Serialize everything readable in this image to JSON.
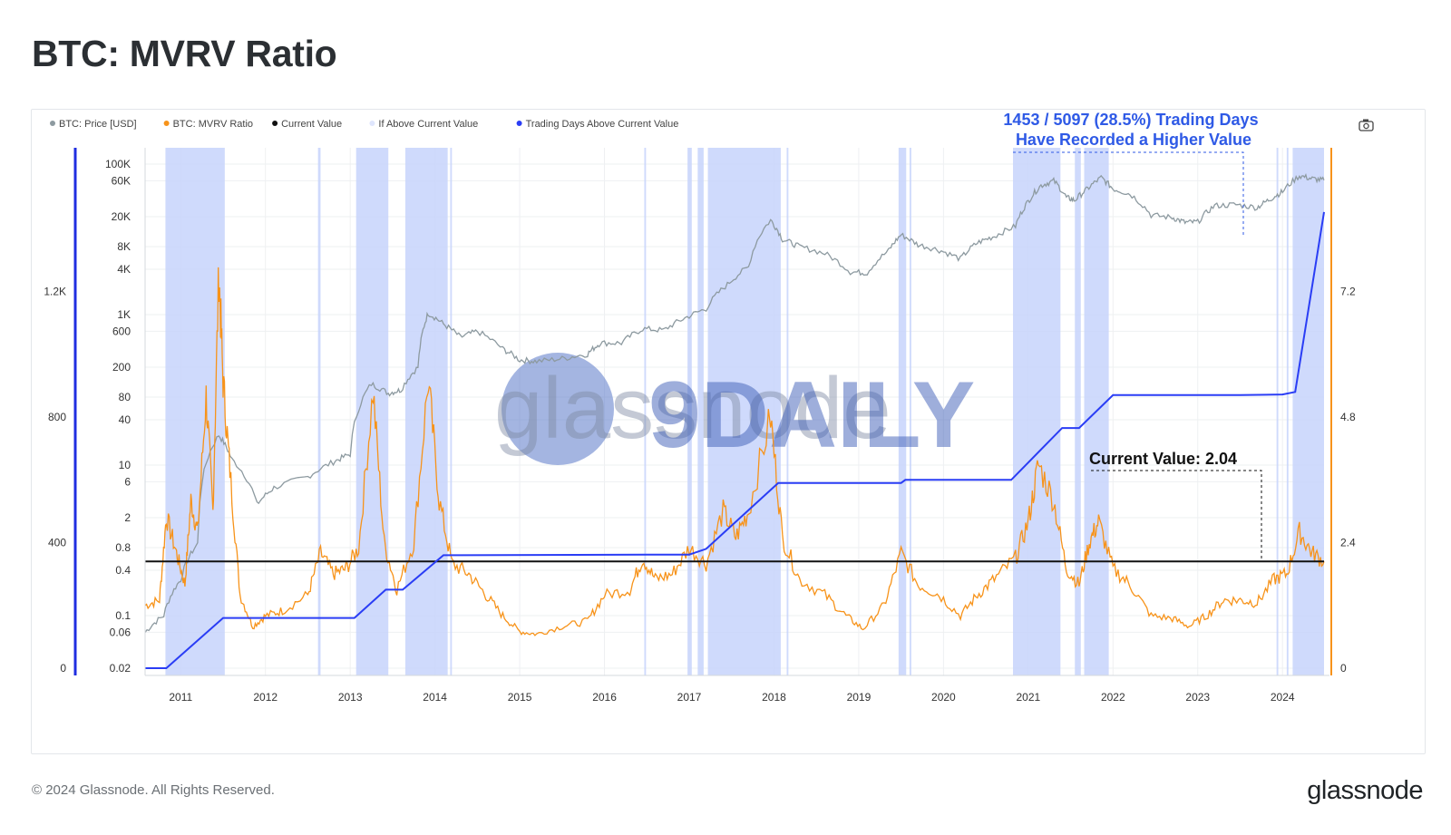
{
  "page": {
    "title": "BTC: MVRV Ratio",
    "copyright": "© 2024 Glassnode. All Rights Reserved.",
    "brand": "glassnode",
    "watermark": "glassnode",
    "watermark2": "9DAILY"
  },
  "colors": {
    "price": "#8d9aa0",
    "mvrv": "#f7931a",
    "current": "#111111",
    "band": "#c7d4fb",
    "trading_days": "#2a3df5",
    "annotation_blue": "#2f5ae6",
    "left_axis": "#1f2ee0",
    "right_axis": "#f7931a"
  },
  "chart_data": {
    "type": "line",
    "title": "BTC: MVRV Ratio",
    "legend": {
      "placement": "top-left",
      "items": [
        {
          "label": "BTC: Price [USD]",
          "color": "#8d9aa0"
        },
        {
          "label": "BTC: MVRV Ratio",
          "color": "#f7931a"
        },
        {
          "label": "Current Value",
          "color": "#111111"
        },
        {
          "label": "If Above Current Value",
          "color": "#dfe6fd"
        },
        {
          "label": "Trading Days Above Current Value",
          "color": "#2a3df5"
        }
      ]
    },
    "x_ticks": [
      "2011",
      "2012",
      "2013",
      "2014",
      "2015",
      "2016",
      "2017",
      "2018",
      "2019",
      "2020",
      "2021",
      "2022",
      "2023",
      "2024"
    ],
    "x_range": [
      2010.58,
      2024.49
    ],
    "left_axis": {
      "ticks": [
        "0",
        "400",
        "800",
        "1.2K"
      ],
      "range": [
        0,
        1600
      ],
      "values": [
        0,
        400,
        800,
        1200
      ]
    },
    "price_axis": {
      "scale": "log",
      "ticks": [
        "0.02",
        "0.06",
        "0.1",
        "0.4",
        "0.8",
        "2",
        "6",
        "10",
        "40",
        "80",
        "200",
        "600",
        "1K",
        "4K",
        "8K",
        "20K",
        "60K",
        "100K"
      ],
      "values": [
        0.02,
        0.06,
        0.1,
        0.4,
        0.8,
        2,
        6,
        10,
        40,
        80,
        200,
        600,
        1000,
        4000,
        8000,
        20000,
        60000,
        100000
      ]
    },
    "right_axis": {
      "ticks": [
        "0",
        "2.4",
        "4.8",
        "7.2"
      ],
      "values": [
        0,
        2.4,
        4.8,
        7.2
      ],
      "range": [
        0,
        9.6
      ]
    },
    "current_value": 2.04,
    "annotations": {
      "trading_days_line1": "1453 / 5097 (28.5%) Trading Days",
      "trading_days_line2": "Have Recorded a Higher Value",
      "current_value_label": "Current Value: 2.04"
    },
    "series": [
      {
        "name": "BTC: Price [USD]",
        "axis": "price_log",
        "points": [
          [
            2010.58,
            0.06
          ],
          [
            2010.8,
            0.1
          ],
          [
            2011.0,
            0.3
          ],
          [
            2011.2,
            0.9
          ],
          [
            2011.45,
            25
          ],
          [
            2011.6,
            12
          ],
          [
            2011.9,
            3
          ],
          [
            2012.1,
            5
          ],
          [
            2012.5,
            7
          ],
          [
            2012.8,
            11
          ],
          [
            2013.0,
            14
          ],
          [
            2013.25,
            120
          ],
          [
            2013.45,
            90
          ],
          [
            2013.6,
            100
          ],
          [
            2013.8,
            200
          ],
          [
            2013.92,
            1050
          ],
          [
            2014.1,
            750
          ],
          [
            2014.3,
            500
          ],
          [
            2014.5,
            600
          ],
          [
            2014.8,
            350
          ],
          [
            2015.0,
            250
          ],
          [
            2015.2,
            240
          ],
          [
            2015.5,
            260
          ],
          [
            2015.8,
            300
          ],
          [
            2015.95,
            420
          ],
          [
            2016.2,
            420
          ],
          [
            2016.45,
            650
          ],
          [
            2016.7,
            620
          ],
          [
            2016.95,
            900
          ],
          [
            2017.2,
            1200
          ],
          [
            2017.45,
            2500
          ],
          [
            2017.7,
            4300
          ],
          [
            2017.96,
            18000
          ],
          [
            2018.1,
            10000
          ],
          [
            2018.3,
            8000
          ],
          [
            2018.6,
            6500
          ],
          [
            2018.9,
            3700
          ],
          [
            2019.1,
            3600
          ],
          [
            2019.35,
            7000
          ],
          [
            2019.5,
            11500
          ],
          [
            2019.7,
            8500
          ],
          [
            2019.95,
            7200
          ],
          [
            2020.2,
            5500
          ],
          [
            2020.4,
            9000
          ],
          [
            2020.6,
            11000
          ],
          [
            2020.85,
            15000
          ],
          [
            2021.0,
            32000
          ],
          [
            2021.15,
            52000
          ],
          [
            2021.3,
            60000
          ],
          [
            2021.45,
            36000
          ],
          [
            2021.55,
            33000
          ],
          [
            2021.7,
            47000
          ],
          [
            2021.86,
            66000
          ],
          [
            2022.0,
            47000
          ],
          [
            2022.2,
            40000
          ],
          [
            2022.45,
            21000
          ],
          [
            2022.7,
            19500
          ],
          [
            2022.85,
            16800
          ],
          [
            2023.0,
            17000
          ],
          [
            2023.2,
            28000
          ],
          [
            2023.45,
            29000
          ],
          [
            2023.7,
            26500
          ],
          [
            2023.85,
            34000
          ],
          [
            2024.0,
            43000
          ],
          [
            2024.2,
            70000
          ],
          [
            2024.35,
            64000
          ],
          [
            2024.49,
            61000
          ]
        ]
      },
      {
        "name": "BTC: MVRV Ratio",
        "axis": "right",
        "points": [
          [
            2010.58,
            1.2
          ],
          [
            2010.75,
            1.3
          ],
          [
            2010.83,
            2.9
          ],
          [
            2010.95,
            2.2
          ],
          [
            2011.05,
            1.6
          ],
          [
            2011.12,
            3.2
          ],
          [
            2011.2,
            2.6
          ],
          [
            2011.3,
            5.2
          ],
          [
            2011.38,
            3.0
          ],
          [
            2011.45,
            7.6
          ],
          [
            2011.5,
            5.5
          ],
          [
            2011.58,
            3.8
          ],
          [
            2011.7,
            1.4
          ],
          [
            2011.85,
            0.8
          ],
          [
            2012.0,
            1.0
          ],
          [
            2012.2,
            1.1
          ],
          [
            2012.5,
            1.4
          ],
          [
            2012.65,
            2.2
          ],
          [
            2012.8,
            1.8
          ],
          [
            2012.95,
            1.9
          ],
          [
            2013.1,
            2.3
          ],
          [
            2013.27,
            5.3
          ],
          [
            2013.4,
            2.4
          ],
          [
            2013.55,
            1.5
          ],
          [
            2013.75,
            2.4
          ],
          [
            2013.92,
            5.5
          ],
          [
            2014.05,
            3.2
          ],
          [
            2014.2,
            2.0
          ],
          [
            2014.4,
            1.8
          ],
          [
            2014.6,
            1.4
          ],
          [
            2014.8,
            1.0
          ],
          [
            2015.0,
            0.7
          ],
          [
            2015.2,
            0.65
          ],
          [
            2015.5,
            0.8
          ],
          [
            2015.8,
            0.9
          ],
          [
            2016.0,
            1.4
          ],
          [
            2016.3,
            1.5
          ],
          [
            2016.45,
            2.1
          ],
          [
            2016.6,
            1.7
          ],
          [
            2016.8,
            1.8
          ],
          [
            2017.0,
            2.3
          ],
          [
            2017.2,
            2.0
          ],
          [
            2017.4,
            3.0
          ],
          [
            2017.55,
            2.5
          ],
          [
            2017.7,
            3.0
          ],
          [
            2017.96,
            4.8
          ],
          [
            2018.1,
            2.5
          ],
          [
            2018.3,
            1.7
          ],
          [
            2018.6,
            1.4
          ],
          [
            2018.85,
            1.0
          ],
          [
            2019.05,
            0.75
          ],
          [
            2019.3,
            1.2
          ],
          [
            2019.5,
            2.2
          ],
          [
            2019.7,
            1.6
          ],
          [
            2019.95,
            1.4
          ],
          [
            2020.2,
            1.0
          ],
          [
            2020.4,
            1.4
          ],
          [
            2020.6,
            1.7
          ],
          [
            2020.85,
            2.1
          ],
          [
            2021.0,
            2.8
          ],
          [
            2021.12,
            3.9
          ],
          [
            2021.3,
            3.2
          ],
          [
            2021.45,
            1.9
          ],
          [
            2021.6,
            1.6
          ],
          [
            2021.72,
            2.4
          ],
          [
            2021.83,
            2.8
          ],
          [
            2022.0,
            1.9
          ],
          [
            2022.2,
            1.6
          ],
          [
            2022.45,
            1.0
          ],
          [
            2022.7,
            0.95
          ],
          [
            2022.9,
            0.8
          ],
          [
            2023.1,
            1.0
          ],
          [
            2023.3,
            1.3
          ],
          [
            2023.5,
            1.3
          ],
          [
            2023.7,
            1.25
          ],
          [
            2023.9,
            1.7
          ],
          [
            2024.05,
            1.8
          ],
          [
            2024.2,
            2.6
          ],
          [
            2024.35,
            2.2
          ],
          [
            2024.49,
            2.04
          ]
        ]
      },
      {
        "name": "Trading Days Above Current Value",
        "axis": "left",
        "points": [
          [
            2010.58,
            0
          ],
          [
            2010.83,
            0
          ],
          [
            2011.5,
            160
          ],
          [
            2012.0,
            160
          ],
          [
            2012.6,
            160
          ],
          [
            2013.05,
            160
          ],
          [
            2013.42,
            250
          ],
          [
            2013.62,
            250
          ],
          [
            2014.1,
            360
          ],
          [
            2014.2,
            360
          ],
          [
            2016.5,
            362
          ],
          [
            2017.0,
            362
          ],
          [
            2017.2,
            380
          ],
          [
            2018.05,
            590
          ],
          [
            2019.0,
            590
          ],
          [
            2019.5,
            590
          ],
          [
            2019.55,
            600
          ],
          [
            2020.8,
            600
          ],
          [
            2021.4,
            765
          ],
          [
            2021.6,
            765
          ],
          [
            2022.0,
            870
          ],
          [
            2023.5,
            870
          ],
          [
            2024.0,
            872
          ],
          [
            2024.15,
            880
          ],
          [
            2024.49,
            1453
          ]
        ]
      }
    ],
    "bands": [
      [
        2010.82,
        2011.52
      ],
      [
        2012.62,
        2012.65
      ],
      [
        2013.07,
        2013.45
      ],
      [
        2013.65,
        2014.15
      ],
      [
        2014.18,
        2014.2
      ],
      [
        2016.47,
        2016.49
      ],
      [
        2016.98,
        2017.03
      ],
      [
        2017.1,
        2017.17
      ],
      [
        2017.22,
        2018.08
      ],
      [
        2018.15,
        2018.17
      ],
      [
        2019.47,
        2019.56
      ],
      [
        2019.6,
        2019.62
      ],
      [
        2020.82,
        2021.38
      ],
      [
        2021.55,
        2021.62
      ],
      [
        2021.66,
        2021.95
      ],
      [
        2023.93,
        2023.95
      ],
      [
        2024.05,
        2024.07
      ],
      [
        2024.12,
        2024.49
      ]
    ]
  }
}
